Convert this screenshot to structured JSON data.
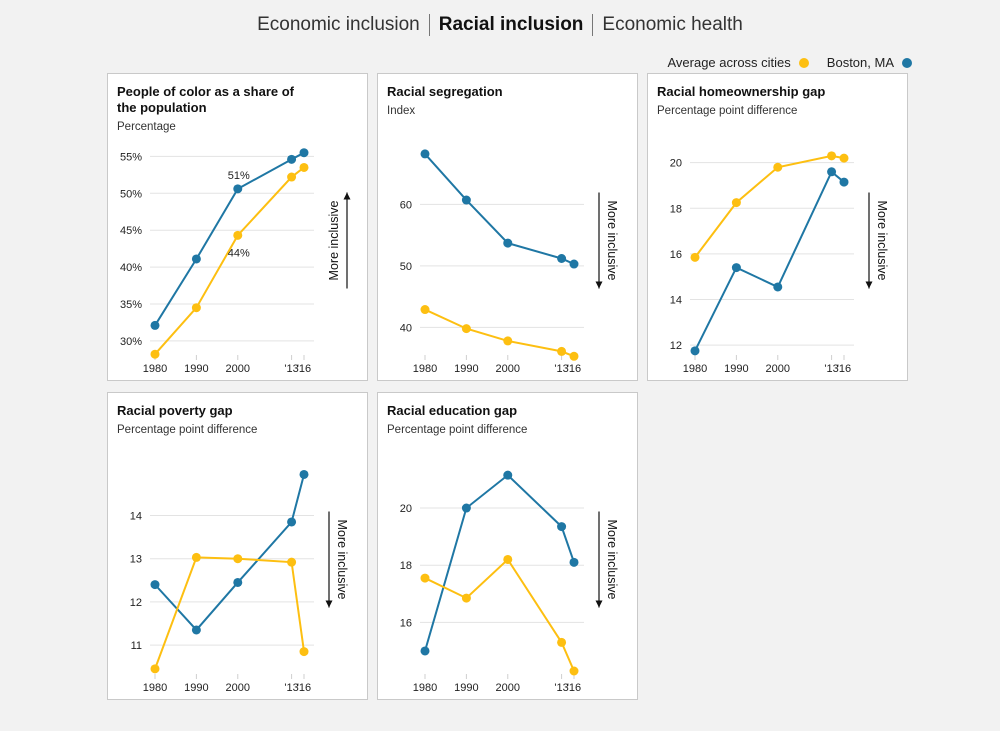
{
  "nav": {
    "tabs": [
      {
        "label": "Economic inclusion"
      },
      {
        "label": "Racial inclusion"
      },
      {
        "label": "Economic health"
      }
    ]
  },
  "legend": {
    "average_label": "Average across cities",
    "boston_label": "Boston, MA"
  },
  "colors": {
    "average": "#fdbf11",
    "boston": "#1f77a4"
  },
  "inclusive_label": "More inclusive",
  "chart_data": [
    {
      "type": "line",
      "title": "People of color as a share of the population",
      "subtitle": "Percentage",
      "x_labels": [
        "1980",
        "1990",
        "2000",
        "'13",
        "'16"
      ],
      "x": [
        1980,
        1990,
        2000,
        2013,
        2016
      ],
      "ylim": [
        28.5,
        56
      ],
      "yticks": [
        30,
        35,
        40,
        45,
        50,
        55
      ],
      "ytick_labels": [
        "30%",
        "35%",
        "40%",
        "45%",
        "50%",
        "55%"
      ],
      "arrow": "up",
      "series": [
        {
          "name": "Boston, MA",
          "values": [
            32.1,
            41.1,
            50.6,
            54.6,
            55.5
          ]
        },
        {
          "name": "Average across cities",
          "values": [
            28.2,
            34.5,
            44.3,
            52.2,
            53.5
          ]
        }
      ],
      "annotations": [
        {
          "text": "51%",
          "series": 0,
          "index": 2
        },
        {
          "text": "44%",
          "series": 1,
          "index": 2
        }
      ]
    },
    {
      "type": "line",
      "title": "Racial segregation",
      "subtitle": "Index",
      "x_labels": [
        "1980",
        "1990",
        "2000",
        "'13",
        "'16"
      ],
      "x": [
        1980,
        1990,
        2000,
        2013,
        2016
      ],
      "ylim": [
        36,
        69
      ],
      "yticks": [
        40,
        50,
        60
      ],
      "ytick_labels": [
        "40",
        "50",
        "60"
      ],
      "arrow": "down",
      "series": [
        {
          "name": "Boston, MA",
          "values": [
            68.2,
            60.7,
            53.7,
            51.2,
            50.3
          ]
        },
        {
          "name": "Average across cities",
          "values": [
            42.9,
            39.8,
            37.8,
            36.1,
            35.3
          ]
        }
      ],
      "annotations": []
    },
    {
      "type": "line",
      "title": "Racial homeownership gap",
      "subtitle": "Percentage point difference",
      "x_labels": [
        "1980",
        "1990",
        "2000",
        "'13",
        "'16"
      ],
      "x": [
        1980,
        1990,
        2000,
        2013,
        2016
      ],
      "ylim": [
        11.7,
        20.6
      ],
      "yticks": [
        12,
        14,
        16,
        18,
        20
      ],
      "ytick_labels": [
        "12",
        "14",
        "16",
        "18",
        "20"
      ],
      "arrow": "down",
      "series": [
        {
          "name": "Boston, MA",
          "values": [
            11.75,
            15.4,
            14.55,
            19.6,
            19.15
          ]
        },
        {
          "name": "Average across cities",
          "values": [
            15.85,
            18.25,
            19.8,
            20.3,
            20.2
          ]
        }
      ],
      "annotations": []
    },
    {
      "type": "line",
      "title": "Racial poverty gap",
      "subtitle": "Percentage point difference",
      "x_labels": [
        "1980",
        "1990",
        "2000",
        "'13",
        "'16"
      ],
      "x": [
        1980,
        1990,
        2000,
        2013,
        2016
      ],
      "ylim": [
        10.4,
        15.1
      ],
      "yticks": [
        11,
        12,
        13,
        14
      ],
      "ytick_labels": [
        "11",
        "12",
        "13",
        "14"
      ],
      "arrow": "down",
      "series": [
        {
          "name": "Boston, MA",
          "values": [
            12.4,
            11.35,
            12.45,
            13.85,
            14.95
          ]
        },
        {
          "name": "Average across cities",
          "values": [
            10.45,
            13.03,
            13.0,
            12.92,
            10.85
          ]
        }
      ],
      "annotations": []
    },
    {
      "type": "line",
      "title": "Racial education gap",
      "subtitle": "Percentage point difference",
      "x_labels": [
        "1980",
        "1990",
        "2000",
        "'13",
        "'16"
      ],
      "x": [
        1980,
        1990,
        2000,
        2013,
        2016
      ],
      "ylim": [
        14.3,
        21.4
      ],
      "yticks": [
        16,
        18,
        20
      ],
      "ytick_labels": [
        "16",
        "18",
        "20"
      ],
      "arrow": "down",
      "series": [
        {
          "name": "Boston, MA",
          "values": [
            15.0,
            20.0,
            21.15,
            19.35,
            18.1
          ]
        },
        {
          "name": "Average across cities",
          "values": [
            17.55,
            16.85,
            18.2,
            15.3,
            14.3
          ]
        }
      ],
      "annotations": []
    }
  ]
}
